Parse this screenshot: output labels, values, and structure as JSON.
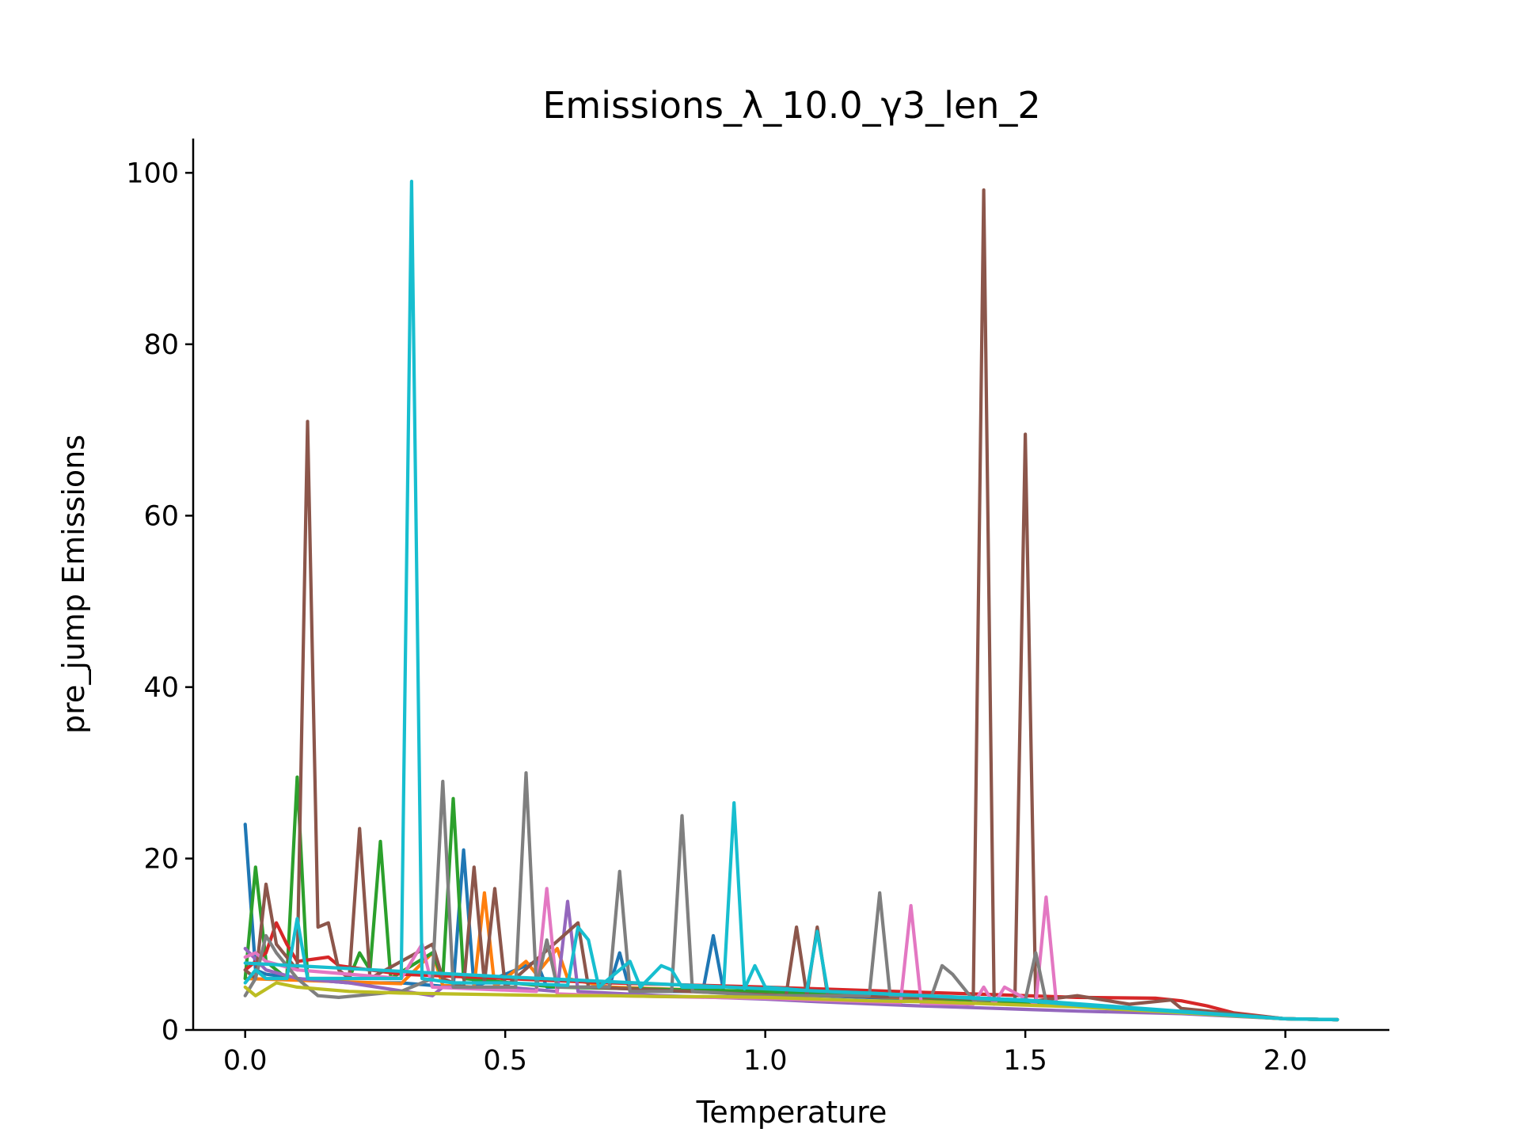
{
  "chart_data": {
    "type": "line",
    "title": "Emissions_λ_10.0_γ3_len_2",
    "xlabel": "Temperature",
    "ylabel": "pre_jump Emissions",
    "xlim": [
      -0.1,
      2.2
    ],
    "ylim": [
      0,
      104
    ],
    "xticks": [
      0.0,
      0.5,
      1.0,
      1.5,
      2.0
    ],
    "xtick_labels": [
      "0.0",
      "0.5",
      "1.0",
      "1.5",
      "2.0"
    ],
    "yticks": [
      0,
      20,
      40,
      60,
      80,
      100
    ],
    "ytick_labels": [
      "0",
      "20",
      "40",
      "60",
      "80",
      "100"
    ],
    "grid": false,
    "legend": "none",
    "series": [
      {
        "color": "#1f77b4",
        "points": [
          [
            0.0,
            24
          ],
          [
            0.02,
            7
          ],
          [
            0.04,
            6.5
          ],
          [
            0.1,
            6
          ],
          [
            0.2,
            5.5
          ],
          [
            0.3,
            5.5
          ],
          [
            0.4,
            5
          ],
          [
            0.42,
            21
          ],
          [
            0.44,
            5
          ],
          [
            0.56,
            8
          ],
          [
            0.58,
            5
          ],
          [
            0.7,
            5
          ],
          [
            0.72,
            9
          ],
          [
            0.74,
            4.5
          ],
          [
            0.88,
            4.5
          ],
          [
            0.9,
            11
          ],
          [
            0.92,
            4.5
          ],
          [
            1.0,
            4.2
          ],
          [
            1.2,
            3.8
          ],
          [
            1.4,
            3.4
          ],
          [
            1.6,
            2.8
          ],
          [
            1.8,
            2.0
          ],
          [
            2.0,
            1.3
          ],
          [
            2.1,
            1.2
          ]
        ]
      },
      {
        "color": "#ff7f0e",
        "points": [
          [
            0.0,
            6
          ],
          [
            0.1,
            5.8
          ],
          [
            0.2,
            5.6
          ],
          [
            0.3,
            5.4
          ],
          [
            0.36,
            9
          ],
          [
            0.38,
            5.2
          ],
          [
            0.44,
            5
          ],
          [
            0.46,
            16
          ],
          [
            0.48,
            5
          ],
          [
            0.54,
            8
          ],
          [
            0.56,
            6.5
          ],
          [
            0.6,
            9.5
          ],
          [
            0.62,
            6
          ],
          [
            0.7,
            5
          ],
          [
            1.0,
            4.4
          ],
          [
            1.2,
            3.9
          ],
          [
            1.4,
            3.5
          ],
          [
            1.6,
            2.9
          ],
          [
            1.8,
            2.1
          ],
          [
            2.0,
            1.3
          ],
          [
            2.1,
            1.2
          ]
        ]
      },
      {
        "color": "#2ca02c",
        "points": [
          [
            0.0,
            6
          ],
          [
            0.02,
            19
          ],
          [
            0.04,
            8
          ],
          [
            0.08,
            6
          ],
          [
            0.1,
            29.5
          ],
          [
            0.12,
            6
          ],
          [
            0.2,
            6
          ],
          [
            0.22,
            9
          ],
          [
            0.24,
            7
          ],
          [
            0.26,
            22
          ],
          [
            0.28,
            6
          ],
          [
            0.36,
            9
          ],
          [
            0.38,
            6
          ],
          [
            0.4,
            27
          ],
          [
            0.42,
            6
          ],
          [
            0.6,
            5
          ],
          [
            1.0,
            4.5
          ],
          [
            1.2,
            4
          ],
          [
            1.4,
            3.5
          ],
          [
            1.6,
            2.9
          ],
          [
            1.8,
            2.1
          ],
          [
            2.0,
            1.3
          ],
          [
            2.1,
            1.2
          ]
        ]
      },
      {
        "color": "#d62728",
        "points": [
          [
            0.0,
            7
          ],
          [
            0.04,
            9
          ],
          [
            0.06,
            12.5
          ],
          [
            0.08,
            10
          ],
          [
            0.1,
            8
          ],
          [
            0.16,
            8.5
          ],
          [
            0.18,
            7.5
          ],
          [
            0.3,
            6.5
          ],
          [
            0.5,
            6
          ],
          [
            0.7,
            5.5
          ],
          [
            1.0,
            5
          ],
          [
            1.2,
            4.6
          ],
          [
            1.4,
            4.2
          ],
          [
            1.6,
            3.8
          ],
          [
            1.75,
            3.7
          ],
          [
            1.8,
            3.4
          ],
          [
            1.85,
            2.8
          ],
          [
            1.9,
            2
          ],
          [
            2.0,
            1.3
          ],
          [
            2.1,
            1.2
          ]
        ]
      },
      {
        "color": "#9467bd",
        "points": [
          [
            0.0,
            9.5
          ],
          [
            0.04,
            7
          ],
          [
            0.1,
            6
          ],
          [
            0.2,
            5.5
          ],
          [
            0.36,
            4
          ],
          [
            0.38,
            5
          ],
          [
            0.5,
            5
          ],
          [
            0.6,
            4.5
          ],
          [
            0.62,
            15
          ],
          [
            0.64,
            4.5
          ],
          [
            0.8,
            4
          ],
          [
            1.0,
            3.6
          ],
          [
            1.1,
            3.3
          ],
          [
            1.3,
            2.8
          ],
          [
            1.4,
            2.6
          ],
          [
            1.5,
            2.4
          ],
          [
            1.6,
            2.2
          ],
          [
            1.8,
            1.9
          ],
          [
            2.0,
            1.3
          ],
          [
            2.1,
            1.2
          ]
        ]
      },
      {
        "color": "#8c564b",
        "points": [
          [
            0.0,
            7
          ],
          [
            0.02,
            6
          ],
          [
            0.04,
            17
          ],
          [
            0.06,
            10
          ],
          [
            0.1,
            7
          ],
          [
            0.12,
            71
          ],
          [
            0.14,
            12
          ],
          [
            0.16,
            12.5
          ],
          [
            0.18,
            7
          ],
          [
            0.2,
            6
          ],
          [
            0.22,
            23.5
          ],
          [
            0.24,
            6
          ],
          [
            0.36,
            10
          ],
          [
            0.38,
            6
          ],
          [
            0.42,
            5
          ],
          [
            0.44,
            19
          ],
          [
            0.46,
            5.5
          ],
          [
            0.48,
            16.5
          ],
          [
            0.5,
            5
          ],
          [
            0.64,
            12.5
          ],
          [
            0.66,
            5
          ],
          [
            1.04,
            4
          ],
          [
            1.06,
            12
          ],
          [
            1.08,
            4
          ],
          [
            1.1,
            12
          ],
          [
            1.12,
            4
          ],
          [
            1.38,
            3.7
          ],
          [
            1.4,
            3.6
          ],
          [
            1.42,
            98
          ],
          [
            1.44,
            3.6
          ],
          [
            1.48,
            3.5
          ],
          [
            1.5,
            69.5
          ],
          [
            1.52,
            3.4
          ],
          [
            1.6,
            4
          ],
          [
            1.7,
            3
          ],
          [
            1.78,
            3.5
          ],
          [
            1.8,
            2.5
          ],
          [
            2.0,
            1.3
          ],
          [
            2.1,
            1.2
          ]
        ]
      },
      {
        "color": "#e377c2",
        "points": [
          [
            0.0,
            8.5
          ],
          [
            0.02,
            9
          ],
          [
            0.04,
            8
          ],
          [
            0.1,
            7
          ],
          [
            0.2,
            6.5
          ],
          [
            0.3,
            6
          ],
          [
            0.34,
            10
          ],
          [
            0.36,
            5
          ],
          [
            0.56,
            4.5
          ],
          [
            0.58,
            16.5
          ],
          [
            0.6,
            4.2
          ],
          [
            0.7,
            4
          ],
          [
            0.9,
            3.8
          ],
          [
            1.0,
            3.7
          ],
          [
            1.1,
            3.5
          ],
          [
            1.26,
            3.2
          ],
          [
            1.28,
            14.5
          ],
          [
            1.3,
            3.1
          ],
          [
            1.4,
            3
          ],
          [
            1.42,
            5
          ],
          [
            1.44,
            3
          ],
          [
            1.46,
            5
          ],
          [
            1.52,
            3
          ],
          [
            1.54,
            15.5
          ],
          [
            1.56,
            3
          ],
          [
            1.6,
            2.8
          ],
          [
            1.8,
            2
          ],
          [
            2.0,
            1.3
          ],
          [
            2.1,
            1.2
          ]
        ]
      },
      {
        "color": "#7f7f7f",
        "points": [
          [
            0.0,
            4
          ],
          [
            0.02,
            6
          ],
          [
            0.04,
            11
          ],
          [
            0.06,
            9
          ],
          [
            0.1,
            6
          ],
          [
            0.14,
            4
          ],
          [
            0.18,
            3.8
          ],
          [
            0.3,
            4.5
          ],
          [
            0.36,
            6
          ],
          [
            0.38,
            29
          ],
          [
            0.4,
            5
          ],
          [
            0.52,
            5
          ],
          [
            0.54,
            30
          ],
          [
            0.56,
            5
          ],
          [
            0.58,
            10.5
          ],
          [
            0.6,
            5
          ],
          [
            0.7,
            5
          ],
          [
            0.72,
            18.5
          ],
          [
            0.74,
            4.5
          ],
          [
            0.82,
            4.5
          ],
          [
            0.84,
            25
          ],
          [
            0.86,
            4.5
          ],
          [
            1.0,
            4
          ],
          [
            1.2,
            4
          ],
          [
            1.22,
            16
          ],
          [
            1.24,
            4
          ],
          [
            1.32,
            4
          ],
          [
            1.34,
            7.5
          ],
          [
            1.36,
            6.5
          ],
          [
            1.4,
            3.5
          ],
          [
            1.5,
            3.5
          ],
          [
            1.52,
            9
          ],
          [
            1.54,
            3.3
          ],
          [
            1.6,
            2.8
          ],
          [
            1.8,
            2
          ],
          [
            2.0,
            1.3
          ],
          [
            2.1,
            1.2
          ]
        ]
      },
      {
        "color": "#bcbd22",
        "points": [
          [
            0.0,
            5
          ],
          [
            0.02,
            4
          ],
          [
            0.06,
            5.5
          ],
          [
            0.1,
            5
          ],
          [
            0.2,
            4.5
          ],
          [
            0.3,
            4.3
          ],
          [
            0.4,
            4.2
          ],
          [
            0.5,
            4.1
          ],
          [
            0.6,
            4
          ],
          [
            0.7,
            4
          ],
          [
            0.8,
            3.9
          ],
          [
            0.9,
            3.9
          ],
          [
            1.0,
            3.8
          ],
          [
            1.1,
            3.6
          ],
          [
            1.2,
            3.4
          ],
          [
            1.3,
            3.3
          ],
          [
            1.4,
            3.1
          ],
          [
            1.5,
            2.9
          ],
          [
            1.6,
            2.7
          ],
          [
            1.8,
            2
          ],
          [
            2.0,
            1.3
          ],
          [
            2.1,
            1.2
          ]
        ]
      },
      {
        "color": "#17becf",
        "points": [
          [
            0.0,
            5.5
          ],
          [
            0.02,
            7
          ],
          [
            0.04,
            6
          ],
          [
            0.08,
            6
          ],
          [
            0.1,
            13
          ],
          [
            0.12,
            6
          ],
          [
            0.3,
            6
          ],
          [
            0.32,
            99
          ],
          [
            0.34,
            6
          ],
          [
            0.4,
            5.5
          ],
          [
            0.5,
            5.5
          ],
          [
            0.62,
            5.2
          ],
          [
            0.64,
            12
          ],
          [
            0.66,
            10.5
          ],
          [
            0.68,
            5
          ],
          [
            0.74,
            8
          ],
          [
            0.76,
            5
          ],
          [
            0.8,
            7.5
          ],
          [
            0.82,
            7
          ],
          [
            0.84,
            5
          ],
          [
            0.92,
            5
          ],
          [
            0.94,
            26.5
          ],
          [
            0.96,
            4.8
          ],
          [
            0.98,
            7.5
          ],
          [
            1.0,
            5
          ],
          [
            1.08,
            4.6
          ],
          [
            1.1,
            11.5
          ],
          [
            1.12,
            4.5
          ],
          [
            1.2,
            4.3
          ],
          [
            1.3,
            4
          ],
          [
            1.4,
            3.7
          ],
          [
            1.5,
            3.4
          ],
          [
            1.6,
            2.9
          ],
          [
            1.8,
            2.1
          ],
          [
            2.0,
            1.3
          ],
          [
            2.1,
            1.2
          ]
        ]
      },
      {
        "color": "#17becf",
        "points": [
          [
            0.0,
            7.8
          ],
          [
            0.5,
            6.2
          ],
          [
            1.0,
            4.8
          ],
          [
            1.5,
            3.5
          ],
          [
            2.0,
            1.3
          ],
          [
            2.1,
            1.2
          ]
        ]
      }
    ]
  }
}
